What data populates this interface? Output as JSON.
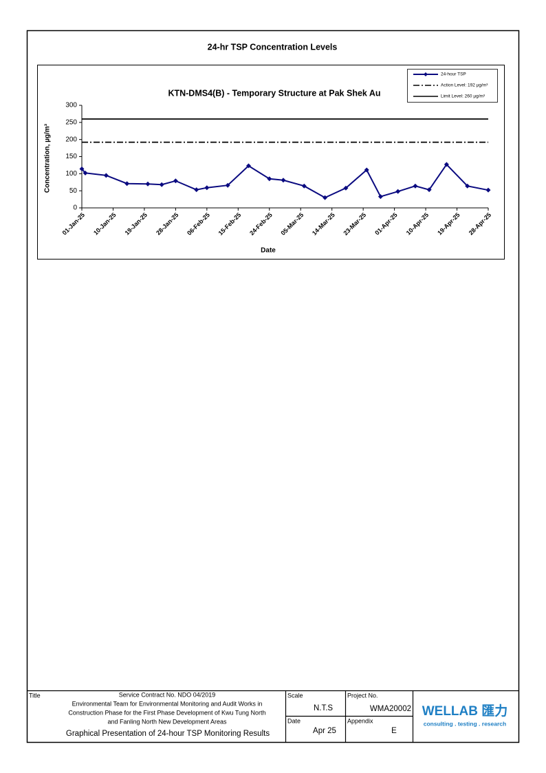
{
  "page_title": "24-hr TSP Concentration Levels",
  "chart_data": {
    "type": "line",
    "title": "KTN-DMS4(B) - Temporary Structure at Pak Shek Au",
    "x_label": "Date",
    "y_label": "Concentration, µg/m³",
    "x": [
      "2025-01-01",
      "2025-01-02",
      "2025-01-08",
      "2025-01-14",
      "2025-01-20",
      "2025-01-24",
      "2025-01-28",
      "2025-02-03",
      "2025-02-06",
      "2025-02-12",
      "2025-02-18",
      "2025-02-24",
      "2025-02-28",
      "2025-03-06",
      "2025-03-12",
      "2025-03-18",
      "2025-03-24",
      "2025-03-28",
      "2025-04-02",
      "2025-04-07",
      "2025-04-11",
      "2025-04-16",
      "2025-04-22",
      "2025-04-28"
    ],
    "series": [
      {
        "name": "24-hour TSP",
        "color": "#0a0a80",
        "values": [
          114,
          102,
          95,
          71,
          70,
          68,
          79,
          53,
          59,
          66,
          123,
          85,
          81,
          64,
          30,
          58,
          111,
          33,
          48,
          64,
          53,
          127,
          64,
          52
        ]
      }
    ],
    "reference_lines": [
      {
        "name": "Action Level: 192 µg/m³",
        "value": 192,
        "style": "dashdot",
        "color": "#000000"
      },
      {
        "name": "Limit Level: 260 µg/m³",
        "value": 260,
        "style": "solid",
        "color": "#000000"
      }
    ],
    "xlim": [
      "2025-01-01",
      "2025-04-28"
    ],
    "xticks": [
      {
        "value": "2025-01-01",
        "label": "01-Jan-25"
      },
      {
        "value": "2025-01-10",
        "label": "10-Jan-25"
      },
      {
        "value": "2025-01-19",
        "label": "19-Jan-25"
      },
      {
        "value": "2025-01-28",
        "label": "28-Jan-25"
      },
      {
        "value": "2025-02-06",
        "label": "06-Feb-25"
      },
      {
        "value": "2025-02-15",
        "label": "15-Feb-25"
      },
      {
        "value": "2025-02-24",
        "label": "24-Feb-25"
      },
      {
        "value": "2025-03-05",
        "label": "05-Mar-25"
      },
      {
        "value": "2025-03-14",
        "label": "14-Mar-25"
      },
      {
        "value": "2025-03-23",
        "label": "23-Mar-25"
      },
      {
        "value": "2025-04-01",
        "label": "01-Apr-25"
      },
      {
        "value": "2025-04-10",
        "label": "10-Apr-25"
      },
      {
        "value": "2025-04-19",
        "label": "19-Apr-25"
      },
      {
        "value": "2025-04-28",
        "label": "28-Apr-25"
      }
    ],
    "ylim": [
      0,
      300
    ],
    "yticks": [
      0,
      50,
      100,
      150,
      200,
      250,
      300
    ],
    "legend": "top-right"
  },
  "footer": {
    "title_label": "Title",
    "contract": "Service Contract No. NDO 04/2019",
    "description": [
      "Environmental Team for Environmental Monitoring and Audit Works in",
      "Construction Phase for the First Phase Development of Kwu Tung North",
      "and Fanling North New Development Areas"
    ],
    "drawing_title": "Graphical Presentation of 24-hour TSP Monitoring Results",
    "scale_label": "Scale",
    "scale": "N.T.S",
    "project_label": "Project No.",
    "project": "WMA20002",
    "date_label": "Date",
    "date": "Apr 25",
    "appendix_label": "Appendix",
    "appendix": "E",
    "logo": "WELLAB 匯力",
    "tagline": "consulting . testing . research"
  }
}
